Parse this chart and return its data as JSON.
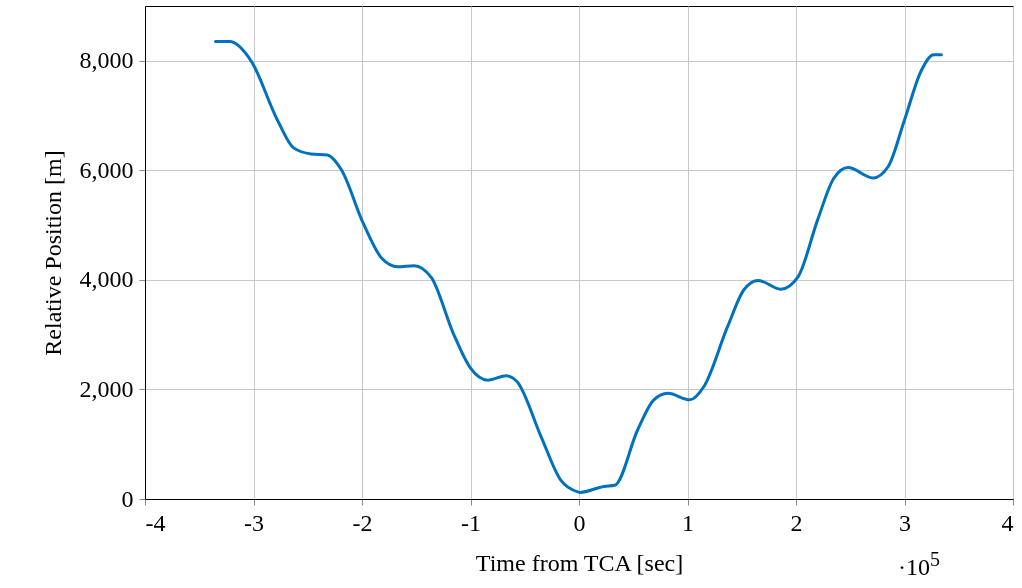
{
  "chart_data": {
    "type": "line",
    "xlabel": "Time from TCA [sec]",
    "ylabel": "Relative Position [m]",
    "annotations": [
      "·10$^{5}$"
    ],
    "series": [
      {
        "color": "#0072bd",
        "x": [
          -3.35,
          -3.22,
          -3.02,
          -2.78,
          -2.63,
          -2.47,
          -2.32,
          -2.19,
          -1.99,
          -1.82,
          -1.67,
          -1.52,
          -1.36,
          -1.16,
          -1.0,
          -0.84,
          -0.67,
          -0.57,
          -0.35,
          -0.17,
          -0.01,
          0.01,
          0.23,
          0.33,
          0.54,
          0.69,
          0.82,
          1.02,
          1.15,
          1.37,
          1.52,
          1.65,
          1.86,
          2.02,
          2.2,
          2.35,
          2.48,
          2.71,
          2.85,
          3.0,
          3.15,
          3.27,
          3.34
        ],
        "values": [
          8350,
          8350,
          7990,
          6920,
          6410,
          6300,
          6280,
          6010,
          5040,
          4400,
          4240,
          4260,
          4040,
          3030,
          2390,
          2170,
          2250,
          2140,
          1140,
          350,
          130,
          120,
          230,
          250,
          1260,
          1810,
          1930,
          1810,
          2050,
          3150,
          3820,
          3990,
          3830,
          4060,
          5100,
          5860,
          6050,
          5860,
          6070,
          6920,
          7800,
          8110,
          8110
        ]
      }
    ],
    "xlim": [
      -4,
      4
    ],
    "xticks": [
      -4,
      -3,
      -2,
      -1,
      0,
      1,
      2,
      3,
      4
    ],
    "ylim": [
      0,
      9000
    ],
    "yticks": [
      0,
      {
        "value": 2000,
        "label": "2,000"
      },
      {
        "value": 4000,
        "label": "4,000"
      },
      {
        "value": 6000,
        "label": "6,000"
      },
      {
        "value": 8000,
        "label": "8,000"
      }
    ],
    "grid": true,
    "line_style": "solid"
  }
}
